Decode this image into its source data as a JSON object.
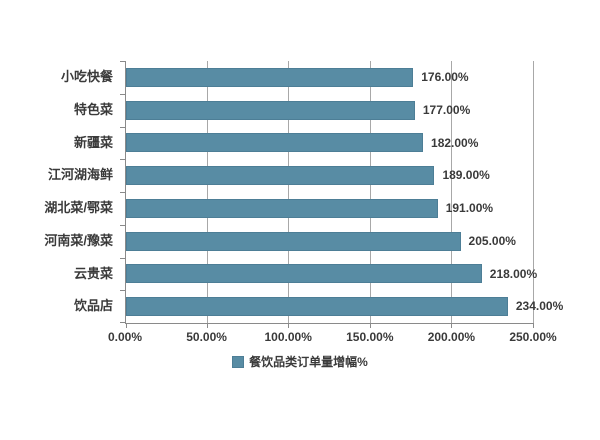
{
  "chart_data": {
    "type": "bar",
    "orientation": "horizontal",
    "title": "",
    "categories": [
      "小吃快餐",
      "特色菜",
      "新疆菜",
      "江河湖海鲜",
      "湖北菜/鄂菜",
      "河南菜/豫菜",
      "云贵菜",
      "饮品店"
    ],
    "values": [
      176,
      177,
      182,
      189,
      191,
      205,
      218,
      234
    ],
    "value_labels": [
      "176.00%",
      "177.00%",
      "182.00%",
      "189.00%",
      "191.00%",
      "205.00%",
      "218.00%",
      "234.00%"
    ],
    "x_ticks": [
      "0.00%",
      "50.00%",
      "100.00%",
      "150.00%",
      "200.00%",
      "250.00%"
    ],
    "xlim": [
      0,
      250
    ],
    "xlabel": "",
    "ylabel": "",
    "grid": "vertical",
    "legend": "餐饮品类订单量增幅%",
    "legend_position": "bottom",
    "bar_color": "#588ca4",
    "bar_border_color": "#4d7e96",
    "gridline_color": "#a8a8a8",
    "axis_color": "#8a8a8a",
    "text_color": "#3a3a3a",
    "background_color": "#ffffff"
  }
}
